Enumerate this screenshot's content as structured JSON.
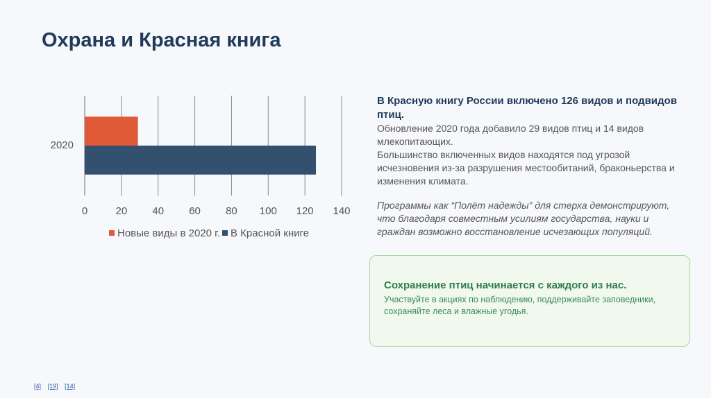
{
  "header": {
    "title": "Охрана и Красная книга"
  },
  "chart_data": {
    "type": "bar",
    "orientation": "horizontal",
    "categories": [
      "2020"
    ],
    "series": [
      {
        "name": "Новые виды в 2020 г.",
        "color": "#e05a37",
        "values": [
          29
        ]
      },
      {
        "name": "В Красной книге",
        "color": "#34506f",
        "values": [
          126
        ]
      }
    ],
    "xlim": [
      0,
      140
    ],
    "xticks": [
      0,
      20,
      40,
      60,
      80,
      100,
      120,
      140
    ],
    "grid": true,
    "legend": "bottom"
  },
  "info": {
    "heading": "В Красную книгу России включено 126 видов и подвидов птиц.",
    "paragraphs": [
      "Обновление 2020 года добавило 29 видов птиц и 14 видов млекопитающих.",
      "Большинство включенных видов находятся под угрозой исчезновения из-за разрушения местообитаний, браконьерства и изменения климата."
    ],
    "note": "Программы как “Полёт надежды” для стерха демонстрируют, что благодаря совместным усилиям государства, науки и граждан возможно восстановление исчезающих популяций."
  },
  "callout": {
    "title": "Сохранение птиц начинается с каждого из нас.",
    "text": "Участвуйте в акциях по наблюдению, поддерживайте заповедники, сохраняйте леса и влажные угодья."
  },
  "footnotes": [
    "[4]",
    "[19]",
    "[14]"
  ]
}
